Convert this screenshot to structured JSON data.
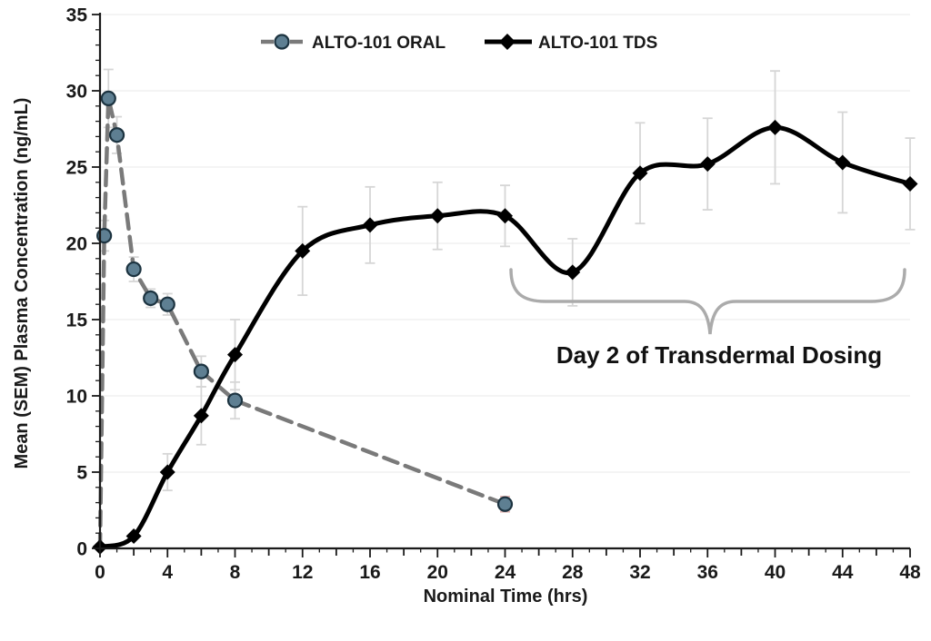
{
  "chart_data": {
    "type": "line",
    "title": "",
    "xlabel": "Nominal Time (hrs)",
    "ylabel": "Mean (SEM) Plasma Concentration (ng/mL)",
    "xlim": [
      0,
      48
    ],
    "ylim": [
      0,
      35
    ],
    "x_tick_labels": [
      0,
      4,
      8,
      12,
      16,
      20,
      24,
      28,
      32,
      36,
      40,
      44,
      48
    ],
    "y_tick_labels": [
      0,
      5,
      10,
      15,
      20,
      25,
      30,
      35
    ],
    "x_minor_tick_step_hrs": 1,
    "y_minor_tick_step": 1,
    "grid": "horizontal gridlines every 5 ng/mL, very light gray",
    "legend_position": "top-center",
    "series": [
      {
        "name": "ALTO-101 ORAL",
        "line_style": "dashed",
        "line_shape": "straight",
        "color": "#7a7a7a",
        "marker": "circle",
        "marker_fill": "#5e7f92",
        "marker_stroke": "#1c3340",
        "x": [
          0,
          0.25,
          0.5,
          1,
          2,
          3,
          4,
          6,
          8,
          24
        ],
        "y": [
          0,
          20.5,
          29.5,
          27.1,
          18.3,
          16.4,
          16.0,
          11.6,
          9.7,
          2.9
        ],
        "sem": [
          0,
          1.0,
          1.9,
          1.2,
          0.8,
          0.6,
          0.7,
          1.0,
          1.2,
          0.5
        ]
      },
      {
        "name": "ALTO-101 TDS",
        "line_style": "solid",
        "line_shape": "smooth",
        "color": "#000000",
        "marker": "diamond",
        "marker_fill": "#000000",
        "marker_stroke": "#000000",
        "x": [
          0,
          2,
          4,
          6,
          8,
          12,
          16,
          20,
          24,
          28,
          32,
          36,
          40,
          44,
          48
        ],
        "y": [
          0.1,
          0.8,
          5.0,
          8.7,
          12.7,
          19.5,
          21.2,
          21.8,
          21.8,
          18.1,
          24.6,
          25.2,
          27.6,
          25.3,
          23.9
        ],
        "sem": [
          0,
          0,
          1.2,
          1.9,
          2.3,
          2.9,
          2.5,
          2.2,
          2.0,
          2.2,
          3.3,
          3.0,
          3.7,
          3.3,
          3.0
        ]
      }
    ],
    "annotation": {
      "text": "Day 2 of Transdermal Dosing",
      "brace_span_hours": [
        24.3,
        47.8
      ],
      "brace_color": "#ababab"
    },
    "colors": {
      "error_bar": "#d6d6d6",
      "oral_24h_error_bar": "#e5b9b5",
      "axis": "#1a1a1a",
      "gridline": "#ededed"
    }
  }
}
